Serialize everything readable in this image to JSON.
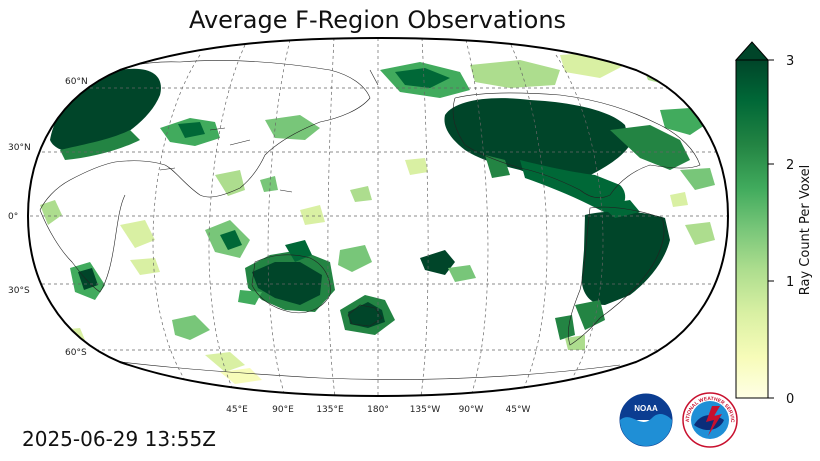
{
  "title": "Average F-Region Observations",
  "timestamp": "2025-06-29 13:55Z",
  "colorbar": {
    "label": "Ray Count Per Voxel",
    "ticks": [
      "0",
      "1",
      "2",
      "3"
    ],
    "min": 0,
    "max": 3,
    "extend": "max",
    "colormap": "YlGn",
    "colors": [
      "#ffffe5",
      "#f7fcb9",
      "#d9f0a3",
      "#addd8e",
      "#78c679",
      "#41ab5d",
      "#238443",
      "#006837",
      "#004529"
    ]
  },
  "map": {
    "projection": "Robinson",
    "central_longitude": 180,
    "lat_labels": [
      "60°N",
      "30°N",
      "0°",
      "30°S",
      "60°S"
    ],
    "lon_labels": [
      "45°E",
      "90°E",
      "135°E",
      "180°",
      "135°W",
      "90°W",
      "45°W"
    ],
    "gridlines": "dashed"
  },
  "logos": [
    {
      "icon": "noaa-logo",
      "text": "NOAA"
    },
    {
      "icon": "national-weather-service-logo",
      "text": "NATIONAL WEATHER SERVICE"
    }
  ]
}
